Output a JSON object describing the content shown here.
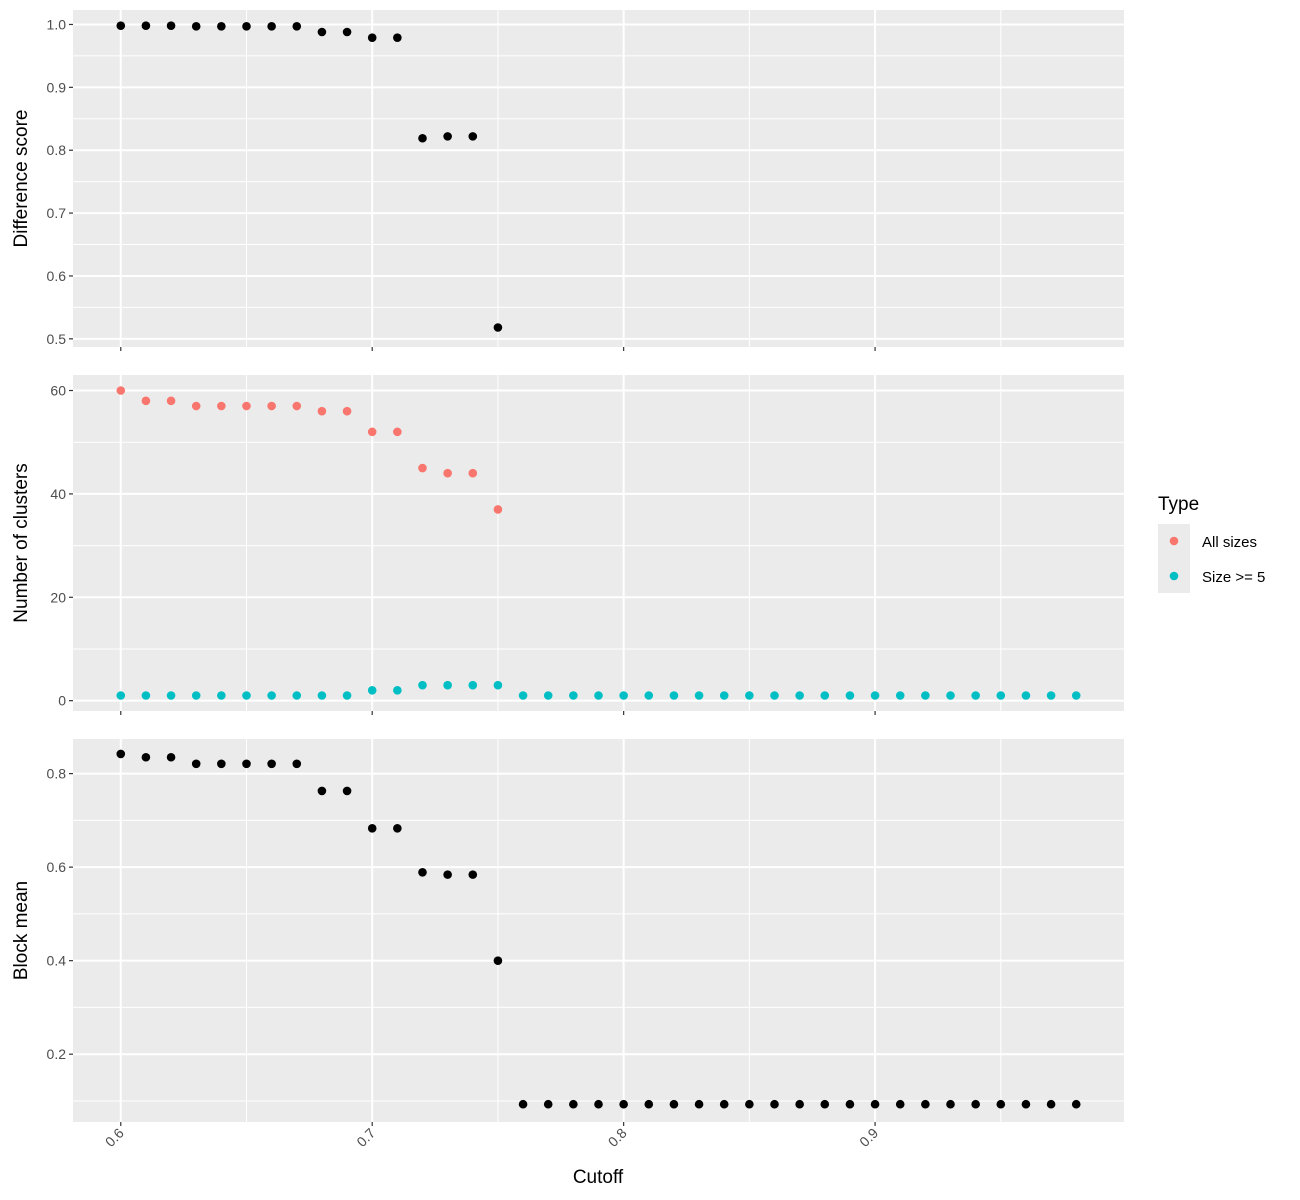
{
  "chart_data": {
    "type": "scatter",
    "x_label": "Cutoff",
    "x_ticks": [
      "0.6",
      "0.7",
      "0.8",
      "0.9"
    ],
    "x_range": [
      0.581,
      0.999
    ],
    "colors": {
      "panel_bg": "#ebebeb",
      "grid": "#ffffff",
      "points": "#000000",
      "all_sizes": "#f8766d",
      "size_ge_5": "#00bfc4"
    },
    "legend": {
      "title": "Type",
      "position": "right",
      "entries": [
        {
          "label": "All sizes",
          "color": "#f8766d"
        },
        {
          "label": "Size >= 5",
          "color": "#00bfc4"
        }
      ]
    },
    "panels": [
      {
        "id": "difference",
        "ylabel": "Difference score",
        "y_range": [
          0.487,
          1.023
        ],
        "y_ticks": [
          "0.5",
          "0.6",
          "0.7",
          "0.8",
          "0.9",
          "1.0"
        ],
        "series": [
          {
            "color": "#000000",
            "x": [
              0.6,
              0.61,
              0.62,
              0.63,
              0.64,
              0.65,
              0.66,
              0.67,
              0.68,
              0.69,
              0.7,
              0.71,
              0.72,
              0.73,
              0.74,
              0.75
            ],
            "y": [
              0.998,
              0.998,
              0.998,
              0.997,
              0.997,
              0.997,
              0.997,
              0.997,
              0.988,
              0.988,
              0.979,
              0.979,
              0.819,
              0.822,
              0.822,
              0.518
            ]
          }
        ]
      },
      {
        "id": "clusters",
        "ylabel": "Number of clusters",
        "y_range": [
          -2,
          63
        ],
        "y_ticks": [
          "0",
          "20",
          "40",
          "60"
        ],
        "series": [
          {
            "name": "All sizes",
            "color": "#f8766d",
            "x": [
              0.6,
              0.61,
              0.62,
              0.63,
              0.64,
              0.65,
              0.66,
              0.67,
              0.68,
              0.69,
              0.7,
              0.71,
              0.72,
              0.73,
              0.74,
              0.75
            ],
            "y": [
              60,
              58,
              58,
              57,
              57,
              57,
              57,
              57,
              56,
              56,
              52,
              52,
              45,
              44,
              44,
              37
            ]
          },
          {
            "name": "Size >= 5",
            "color": "#00bfc4",
            "x": [
              0.6,
              0.61,
              0.62,
              0.63,
              0.64,
              0.65,
              0.66,
              0.67,
              0.68,
              0.69,
              0.7,
              0.71,
              0.72,
              0.73,
              0.74,
              0.75,
              0.76,
              0.77,
              0.78,
              0.79,
              0.8,
              0.81,
              0.82,
              0.83,
              0.84,
              0.85,
              0.86,
              0.87,
              0.88,
              0.89,
              0.9,
              0.91,
              0.92,
              0.93,
              0.94,
              0.95,
              0.96,
              0.97,
              0.98
            ],
            "y": [
              1,
              1,
              1,
              1,
              1,
              1,
              1,
              1,
              1,
              1,
              2,
              2,
              3,
              3,
              3,
              3,
              1,
              1,
              1,
              1,
              1,
              1,
              1,
              1,
              1,
              1,
              1,
              1,
              1,
              1,
              1,
              1,
              1,
              1,
              1,
              1,
              1,
              1,
              1
            ]
          }
        ]
      },
      {
        "id": "blockmean",
        "ylabel": "Block mean",
        "y_range": [
          0.055,
          0.874
        ],
        "y_ticks": [
          "0.2",
          "0.4",
          "0.6",
          "0.8"
        ],
        "series": [
          {
            "color": "#000000",
            "x": [
              0.6,
              0.61,
              0.62,
              0.63,
              0.64,
              0.65,
              0.66,
              0.67,
              0.68,
              0.69,
              0.7,
              0.71,
              0.72,
              0.73,
              0.74,
              0.75,
              0.76,
              0.77,
              0.78,
              0.79,
              0.8,
              0.81,
              0.82,
              0.83,
              0.84,
              0.85,
              0.86,
              0.87,
              0.88,
              0.89,
              0.9,
              0.91,
              0.92,
              0.93,
              0.94,
              0.95,
              0.96,
              0.97,
              0.98
            ],
            "y": [
              0.842,
              0.835,
              0.835,
              0.821,
              0.821,
              0.821,
              0.821,
              0.821,
              0.763,
              0.763,
              0.683,
              0.683,
              0.589,
              0.584,
              0.584,
              0.4,
              0.093,
              0.093,
              0.093,
              0.093,
              0.093,
              0.093,
              0.093,
              0.093,
              0.093,
              0.093,
              0.093,
              0.093,
              0.093,
              0.093,
              0.093,
              0.093,
              0.093,
              0.093,
              0.093,
              0.093,
              0.093,
              0.093,
              0.093
            ]
          }
        ]
      }
    ]
  }
}
